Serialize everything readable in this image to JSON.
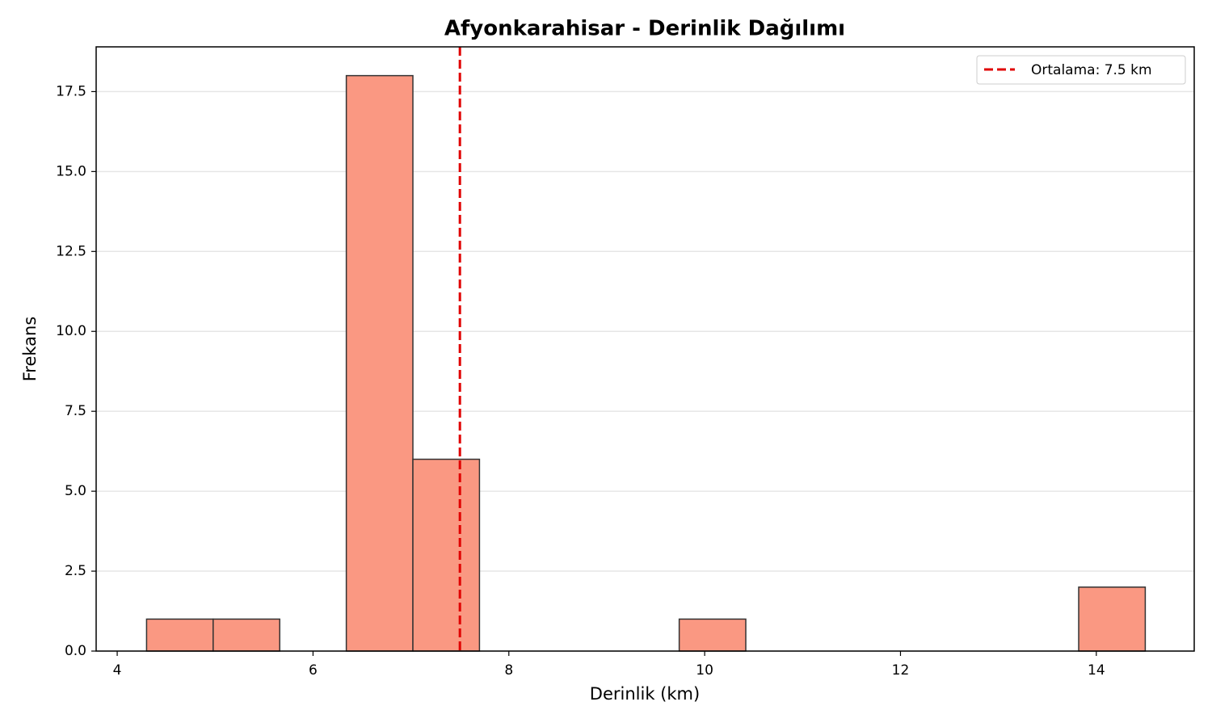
{
  "chart_data": {
    "type": "histogram",
    "title": "Afyonkarahisar - Derinlik Dağılımı",
    "x_label": "Derinlik (km)",
    "y_label": "Frekans",
    "bins": [
      4.3,
      4.98,
      5.66,
      6.34,
      7.02,
      7.7,
      8.38,
      9.06,
      9.74,
      10.42,
      11.1,
      11.78,
      12.46,
      13.14,
      13.82,
      14.5
    ],
    "values": [
      1,
      1,
      0,
      18,
      6,
      0,
      0,
      0,
      1,
      0,
      0,
      0,
      0,
      0,
      2
    ],
    "color": "#fa9882",
    "edge_color": "#333333",
    "mean_line": {
      "value": 7.5,
      "label": "Ortalama: 7.5 km",
      "color": "#e00000"
    },
    "xlim": [
      3.785,
      15.0
    ],
    "xticks": [
      4,
      6,
      8,
      10,
      12,
      14
    ],
    "ylim": [
      0,
      18.9
    ],
    "yticks": [
      {
        "value": 0,
        "label": "0.0"
      },
      2.5,
      {
        "value": 5,
        "label": "5.0"
      },
      7.5,
      {
        "value": 10,
        "label": "10.0"
      },
      12.5,
      {
        "value": 15,
        "label": "15.0"
      },
      17.5
    ],
    "grid": true,
    "legend_position": "upper right"
  }
}
